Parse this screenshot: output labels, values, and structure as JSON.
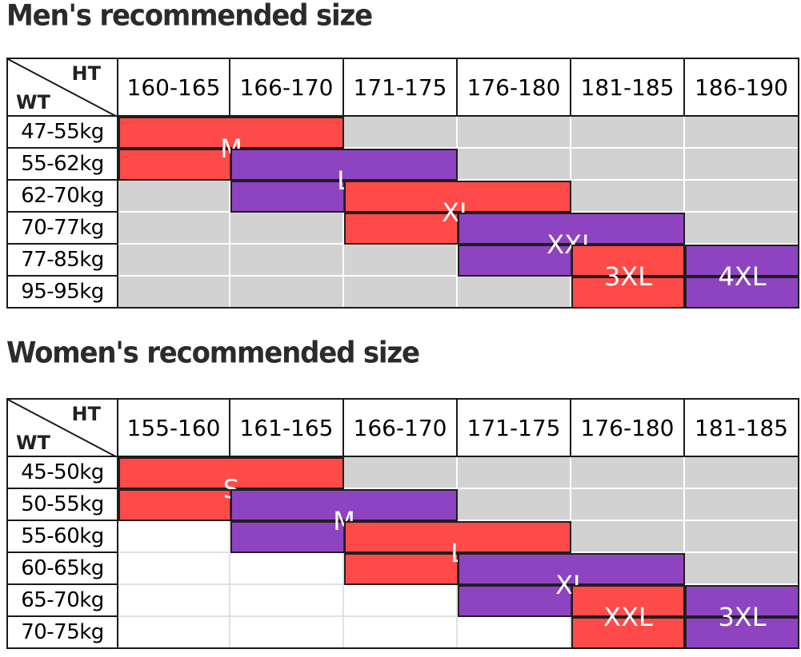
{
  "men": {
    "title": "Men's recommended size",
    "corner": {
      "ht": "HT",
      "wt": "WT"
    },
    "heights": [
      "160-165",
      "166-170",
      "171-175",
      "176-180",
      "181-185",
      "186-190"
    ],
    "weights": [
      "47-55kg",
      "55-62kg",
      "62-70kg",
      "70-77kg",
      "77-85kg",
      "95-95kg"
    ],
    "sizes": [
      {
        "label": "M",
        "color": "#ff4a4a",
        "rows": [
          0,
          1
        ],
        "cols": [
          0,
          1
        ]
      },
      {
        "label": "L",
        "color": "#8e44c0",
        "rows": [
          1,
          2
        ],
        "cols": [
          1,
          2
        ]
      },
      {
        "label": "XL",
        "color": "#ff4a4a",
        "rows": [
          2,
          3
        ],
        "cols": [
          2,
          3
        ]
      },
      {
        "label": "XXL",
        "color": "#8e44c0",
        "rows": [
          3,
          4
        ],
        "cols": [
          3,
          4
        ]
      },
      {
        "label": "3XL",
        "color": "#ff4a4a",
        "rows": [
          4,
          5
        ],
        "cols": [
          4
        ]
      },
      {
        "label": "4XL",
        "color": "#8e44c0",
        "rows": [
          4,
          5
        ],
        "cols": [
          5
        ]
      }
    ],
    "empty_fill": "gray"
  },
  "women": {
    "title": "Women's recommended size",
    "corner": {
      "ht": "HT",
      "wt": "WT"
    },
    "heights": [
      "155-160",
      "161-165",
      "166-170",
      "171-175",
      "176-180",
      "181-185"
    ],
    "weights": [
      "45-50kg",
      "50-55kg",
      "55-60kg",
      "60-65kg",
      "65-70kg",
      "70-75kg"
    ],
    "sizes": [
      {
        "label": "S",
        "color": "#ff4a4a",
        "rows": [
          0,
          1
        ],
        "cols": [
          0,
          1
        ]
      },
      {
        "label": "M",
        "color": "#8e44c0",
        "rows": [
          1,
          2
        ],
        "cols": [
          1,
          2
        ]
      },
      {
        "label": "L",
        "color": "#ff4a4a",
        "rows": [
          2,
          3
        ],
        "cols": [
          2,
          3
        ]
      },
      {
        "label": "XL",
        "color": "#8e44c0",
        "rows": [
          3,
          4
        ],
        "cols": [
          3,
          4
        ]
      },
      {
        "label": "XXL",
        "color": "#ff4a4a",
        "rows": [
          4,
          5
        ],
        "cols": [
          4
        ]
      },
      {
        "label": "3XL",
        "color": "#8e44c0",
        "rows": [
          4,
          5
        ],
        "cols": [
          5
        ]
      }
    ],
    "empty_fill": "gray-upper-right"
  }
}
